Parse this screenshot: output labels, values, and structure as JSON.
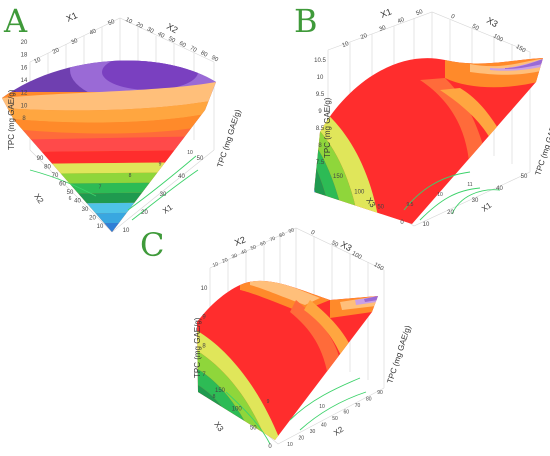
{
  "chart_data": [
    {
      "panel": "A",
      "type": "surface",
      "x_axis": "X1",
      "y_axis": "X2",
      "z_axis": "TPC (mg GAE/g)",
      "x_ticks": [
        "10",
        "20",
        "30",
        "40",
        "50"
      ],
      "y_ticks": [
        "10",
        "20",
        "30",
        "40",
        "50",
        "60",
        "70",
        "80",
        "90"
      ],
      "z_ticks": [
        "8",
        "10",
        "12",
        "14",
        "16",
        "18",
        "20"
      ],
      "floor_contours": [
        "6",
        "7",
        "8",
        "9",
        "10"
      ],
      "color_bands": [
        "#2f7fd6",
        "#39a7e0",
        "#4fc3e8",
        "#1f9a4f",
        "#2dbb55",
        "#8fd63b",
        "#e0e65a",
        "#ff2d2d",
        "#ff4a4a",
        "#ff6b3a",
        "#ff8a2a",
        "#ffa640",
        "#ffbf7a",
        "#f3a6c8",
        "#c9a0e6",
        "#9a6ad6",
        "#6f3fb0"
      ]
    },
    {
      "panel": "B",
      "type": "surface",
      "x_axis": "X1",
      "y_axis": "X3",
      "z_axis": "TPC (mg GAE/g)",
      "x_ticks": [
        "10",
        "20",
        "30",
        "40",
        "50"
      ],
      "y_ticks": [
        "0",
        "50",
        "100",
        "150"
      ],
      "z_ticks": [
        "7.5",
        "8",
        "8.5",
        "9",
        "9.5",
        "10",
        "10.5"
      ],
      "floor_contours": [
        "9.5",
        "10",
        "11"
      ],
      "color_bands": [
        "#2f7fd6",
        "#39a7e0",
        "#4fc3e8",
        "#1f9a4f",
        "#2dbb55",
        "#8fd63b",
        "#e0e65a",
        "#ff2d2d",
        "#ff4a4a",
        "#ff6b3a",
        "#ff8a2a",
        "#ffa640",
        "#ffbf7a",
        "#f3a6c8",
        "#c9a0e6",
        "#9a6ad6",
        "#6f3fb0"
      ]
    },
    {
      "panel": "C",
      "type": "surface",
      "x_axis": "X2",
      "y_axis": "X3",
      "z_axis": "TPC (mg GAE/g)",
      "x_ticks": [
        "10",
        "20",
        "30",
        "40",
        "50",
        "60",
        "70",
        "80",
        "90"
      ],
      "y_ticks": [
        "0",
        "50",
        "100",
        "150"
      ],
      "z_ticks": [
        "7",
        "8",
        "9",
        "10"
      ],
      "floor_contours": [
        "8",
        "9",
        "10"
      ],
      "color_bands": [
        "#2f7fd6",
        "#39a7e0",
        "#4fc3e8",
        "#1f9a4f",
        "#2dbb55",
        "#8fd63b",
        "#e0e65a",
        "#ff2d2d",
        "#ff4a4a",
        "#ff6b3a",
        "#ff8a2a",
        "#ffa640",
        "#ffbf7a",
        "#f3a6c8",
        "#c9a0e6",
        "#9a6ad6",
        "#6f3fb0"
      ]
    }
  ]
}
